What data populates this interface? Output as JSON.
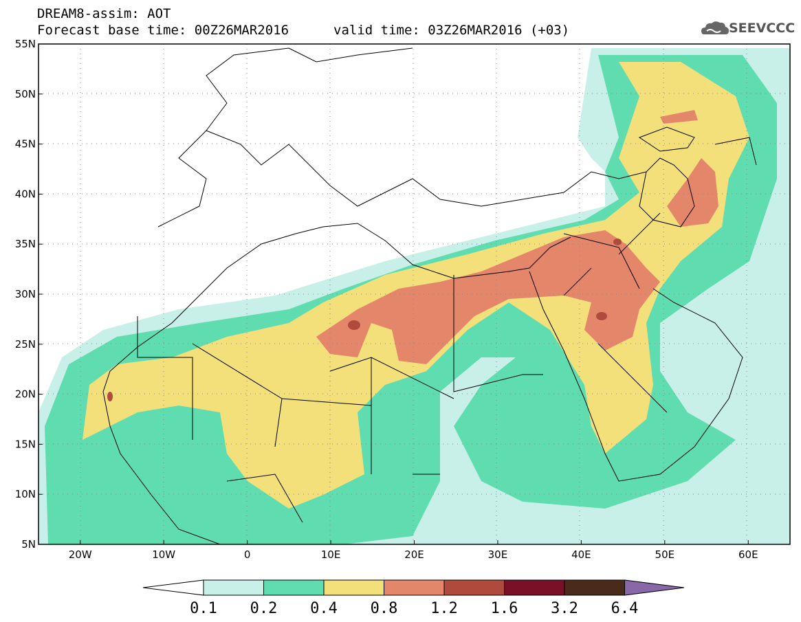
{
  "header": {
    "line1": "DREAM8-assim: AOT",
    "line2": "Forecast base time: 00Z26MAR2016",
    "valid": "valid time: 03Z26MAR2016 (+03)",
    "logo_text": "SEEVCCC"
  },
  "chart_data": {
    "type": "heatmap",
    "variable": "AOT",
    "lon_range": [
      -25,
      65
    ],
    "lat_range": [
      5,
      55
    ],
    "x_ticks": [
      "20W",
      "10W",
      "0",
      "10E",
      "20E",
      "30E",
      "40E",
      "50E",
      "60E"
    ],
    "y_ticks": [
      "55N",
      "50N",
      "45N",
      "40N",
      "35N",
      "30N",
      "25N",
      "20N",
      "15N",
      "10N",
      "5N"
    ],
    "colorbar": {
      "levels": [
        "0.1",
        "0.2",
        "0.4",
        "0.8",
        "1.2",
        "1.6",
        "3.2",
        "6.4"
      ],
      "colors": [
        "#c8f0e8",
        "#5fddb0",
        "#f3e07a",
        "#e4866a",
        "#b04a3c",
        "#7a0f28",
        "#4a2a1a",
        "#8a68a8"
      ]
    }
  }
}
